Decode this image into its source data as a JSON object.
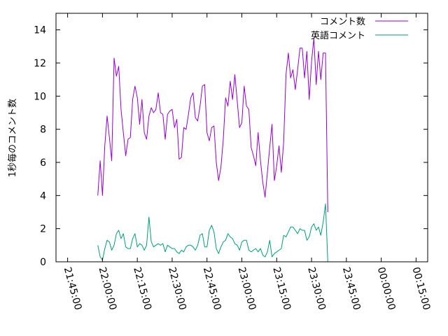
{
  "chart_data": {
    "type": "line",
    "ylabel": "1秒毎のコメント数",
    "xlabel": "",
    "ylim": [
      0,
      15
    ],
    "xlim": [
      "21:40:00",
      "00:20:00"
    ],
    "y_ticks": [
      0,
      2,
      4,
      6,
      8,
      10,
      12,
      14
    ],
    "x_ticks": [
      "21:45:00",
      "22:00:00",
      "22:15:00",
      "22:30:00",
      "22:45:00",
      "23:00:00",
      "23:15:00",
      "23:30:00",
      "23:45:00",
      "00:00:00",
      "00:15:00"
    ],
    "grid": false,
    "legend_position": "top-right",
    "series": [
      {
        "name": "コメント数",
        "color": "#9400d3",
        "points": [
          [
            "21:58:00",
            4.0
          ],
          [
            "21:59:00",
            6.1
          ],
          [
            "22:00:00",
            4.0
          ],
          [
            "22:01:00",
            7.0
          ],
          [
            "22:02:00",
            8.8
          ],
          [
            "22:03:00",
            7.5
          ],
          [
            "22:04:00",
            6.1
          ],
          [
            "22:05:00",
            12.3
          ],
          [
            "22:06:00",
            11.2
          ],
          [
            "22:07:00",
            11.8
          ],
          [
            "22:08:00",
            9.2
          ],
          [
            "22:09:00",
            7.8
          ],
          [
            "22:10:00",
            6.4
          ],
          [
            "22:11:00",
            7.4
          ],
          [
            "22:12:00",
            7.5
          ],
          [
            "22:13:00",
            9.8
          ],
          [
            "22:14:00",
            10.6
          ],
          [
            "22:15:00",
            9.9
          ],
          [
            "22:16:00",
            8.3
          ],
          [
            "22:17:00",
            9.8
          ],
          [
            "22:18:00",
            7.8
          ],
          [
            "22:19:00",
            7.4
          ],
          [
            "22:20:00",
            8.8
          ],
          [
            "22:21:00",
            9.3
          ],
          [
            "22:22:00",
            9.0
          ],
          [
            "22:23:00",
            9.2
          ],
          [
            "22:24:00",
            10.2
          ],
          [
            "22:25:00",
            9.0
          ],
          [
            "22:26:00",
            8.9
          ],
          [
            "22:27:00",
            7.4
          ],
          [
            "22:28:00",
            8.9
          ],
          [
            "22:29:00",
            9.1
          ],
          [
            "22:30:00",
            9.2
          ],
          [
            "22:31:00",
            8.1
          ],
          [
            "22:32:00",
            8.6
          ],
          [
            "22:33:00",
            6.2
          ],
          [
            "22:34:00",
            6.3
          ],
          [
            "22:35:00",
            8.1
          ],
          [
            "22:36:00",
            8.0
          ],
          [
            "22:37:00",
            8.9
          ],
          [
            "22:38:00",
            9.9
          ],
          [
            "22:39:00",
            10.2
          ],
          [
            "22:40:00",
            8.7
          ],
          [
            "22:41:00",
            8.5
          ],
          [
            "22:42:00",
            9.4
          ],
          [
            "22:43:00",
            10.6
          ],
          [
            "22:44:00",
            10.7
          ],
          [
            "22:45:00",
            7.8
          ],
          [
            "22:46:00",
            7.3
          ],
          [
            "22:47:00",
            8.1
          ],
          [
            "22:48:00",
            8.2
          ],
          [
            "22:49:00",
            6.0
          ],
          [
            "22:50:00",
            4.9
          ],
          [
            "22:51:00",
            5.7
          ],
          [
            "22:52:00",
            7.4
          ],
          [
            "22:53:00",
            9.9
          ],
          [
            "22:54:00",
            9.4
          ],
          [
            "22:55:00",
            10.9
          ],
          [
            "22:56:00",
            9.8
          ],
          [
            "22:57:00",
            11.3
          ],
          [
            "22:58:00",
            9.7
          ],
          [
            "22:59:00",
            8.1
          ],
          [
            "23:00:00",
            8.4
          ],
          [
            "23:01:00",
            10.6
          ],
          [
            "23:02:00",
            9.4
          ],
          [
            "23:03:00",
            9.2
          ],
          [
            "23:04:00",
            6.9
          ],
          [
            "23:05:00",
            6.4
          ],
          [
            "23:06:00",
            5.8
          ],
          [
            "23:07:00",
            7.8
          ],
          [
            "23:08:00",
            6.1
          ],
          [
            "23:09:00",
            4.8
          ],
          [
            "23:10:00",
            3.9
          ],
          [
            "23:11:00",
            5.4
          ],
          [
            "23:12:00",
            6.9
          ],
          [
            "23:13:00",
            8.3
          ],
          [
            "23:14:00",
            4.9
          ],
          [
            "23:15:00",
            5.8
          ],
          [
            "23:16:00",
            7.0
          ],
          [
            "23:17:00",
            5.4
          ],
          [
            "23:18:00",
            7.2
          ],
          [
            "23:19:00",
            11.3
          ],
          [
            "23:20:00",
            12.6
          ],
          [
            "23:21:00",
            11.1
          ],
          [
            "23:22:00",
            11.6
          ],
          [
            "23:23:00",
            10.4
          ],
          [
            "23:24:00",
            11.6
          ],
          [
            "23:25:00",
            12.9
          ],
          [
            "23:26:00",
            12.9
          ],
          [
            "23:27:00",
            11.1
          ],
          [
            "23:28:00",
            12.7
          ],
          [
            "23:29:00",
            9.8
          ],
          [
            "23:30:00",
            12.1
          ],
          [
            "23:31:00",
            13.5
          ],
          [
            "23:32:00",
            10.7
          ],
          [
            "23:33:00",
            12.7
          ],
          [
            "23:34:00",
            11.0
          ],
          [
            "23:35:00",
            12.6
          ],
          [
            "23:36:00",
            12.6
          ],
          [
            "23:37:00",
            3.0
          ]
        ]
      },
      {
        "name": "英語コメント",
        "color": "#009e73",
        "points": [
          [
            "21:58:00",
            1.0
          ],
          [
            "21:59:00",
            0.3
          ],
          [
            "22:00:00",
            0.1
          ],
          [
            "22:01:00",
            0.8
          ],
          [
            "22:02:00",
            1.3
          ],
          [
            "22:03:00",
            1.2
          ],
          [
            "22:04:00",
            0.7
          ],
          [
            "22:05:00",
            1.0
          ],
          [
            "22:06:00",
            1.7
          ],
          [
            "22:07:00",
            1.9
          ],
          [
            "22:08:00",
            1.4
          ],
          [
            "22:09:00",
            1.7
          ],
          [
            "22:10:00",
            0.9
          ],
          [
            "22:11:00",
            0.8
          ],
          [
            "22:12:00",
            0.8
          ],
          [
            "22:13:00",
            1.4
          ],
          [
            "22:14:00",
            1.7
          ],
          [
            "22:15:00",
            0.9
          ],
          [
            "22:16:00",
            1.1
          ],
          [
            "22:17:00",
            1.0
          ],
          [
            "22:18:00",
            0.7
          ],
          [
            "22:19:00",
            1.0
          ],
          [
            "22:20:00",
            2.7
          ],
          [
            "22:21:00",
            1.2
          ],
          [
            "22:22:00",
            0.9
          ],
          [
            "22:23:00",
            1.0
          ],
          [
            "22:24:00",
            1.1
          ],
          [
            "22:25:00",
            1.0
          ],
          [
            "22:26:00",
            1.1
          ],
          [
            "22:27:00",
            0.6
          ],
          [
            "22:28:00",
            1.0
          ],
          [
            "22:29:00",
            0.9
          ],
          [
            "22:30:00",
            0.8
          ],
          [
            "22:31:00",
            0.8
          ],
          [
            "22:32:00",
            0.6
          ],
          [
            "22:33:00",
            0.5
          ],
          [
            "22:34:00",
            0.7
          ],
          [
            "22:35:00",
            0.6
          ],
          [
            "22:36:00",
            0.9
          ],
          [
            "22:37:00",
            1.0
          ],
          [
            "22:38:00",
            1.0
          ],
          [
            "22:39:00",
            0.9
          ],
          [
            "22:40:00",
            0.7
          ],
          [
            "22:41:00",
            1.0
          ],
          [
            "22:42:00",
            1.6
          ],
          [
            "22:43:00",
            1.7
          ],
          [
            "22:44:00",
            0.9
          ],
          [
            "22:45:00",
            0.9
          ],
          [
            "22:46:00",
            1.9
          ],
          [
            "22:47:00",
            2.2
          ],
          [
            "22:48:00",
            1.8
          ],
          [
            "22:49:00",
            0.8
          ],
          [
            "22:50:00",
            0.5
          ],
          [
            "22:51:00",
            0.9
          ],
          [
            "22:52:00",
            1.2
          ],
          [
            "22:53:00",
            1.3
          ],
          [
            "22:54:00",
            1.7
          ],
          [
            "22:55:00",
            1.5
          ],
          [
            "22:56:00",
            1.4
          ],
          [
            "22:57:00",
            1.1
          ],
          [
            "22:58:00",
            1.0
          ],
          [
            "22:59:00",
            0.7
          ],
          [
            "23:00:00",
            1.2
          ],
          [
            "23:01:00",
            1.3
          ],
          [
            "23:02:00",
            1.3
          ],
          [
            "23:03:00",
            0.7
          ],
          [
            "23:04:00",
            0.6
          ],
          [
            "23:05:00",
            0.7
          ],
          [
            "23:06:00",
            0.8
          ],
          [
            "23:07:00",
            0.6
          ],
          [
            "23:08:00",
            0.8
          ],
          [
            "23:09:00",
            0.4
          ],
          [
            "23:10:00",
            0.3
          ],
          [
            "23:11:00",
            0.6
          ],
          [
            "23:12:00",
            1.3
          ],
          [
            "23:13:00",
            0.3
          ],
          [
            "23:14:00",
            0.5
          ],
          [
            "23:15:00",
            0.6
          ],
          [
            "23:16:00",
            0.7
          ],
          [
            "23:17:00",
            0.8
          ],
          [
            "23:18:00",
            1.6
          ],
          [
            "23:19:00",
            1.5
          ],
          [
            "23:20:00",
            1.8
          ],
          [
            "23:21:00",
            2.1
          ],
          [
            "23:22:00",
            2.1
          ],
          [
            "23:23:00",
            1.9
          ],
          [
            "23:24:00",
            1.7
          ],
          [
            "23:25:00",
            2.0
          ],
          [
            "23:26:00",
            1.9
          ],
          [
            "23:27:00",
            1.9
          ],
          [
            "23:28:00",
            1.3
          ],
          [
            "23:29:00",
            1.5
          ],
          [
            "23:30:00",
            2.1
          ],
          [
            "23:31:00",
            2.3
          ],
          [
            "23:32:00",
            1.9
          ],
          [
            "23:33:00",
            2.1
          ],
          [
            "23:34:00",
            1.6
          ],
          [
            "23:35:00",
            2.4
          ],
          [
            "23:36:00",
            3.5
          ],
          [
            "23:37:00",
            0.0
          ]
        ]
      }
    ]
  }
}
